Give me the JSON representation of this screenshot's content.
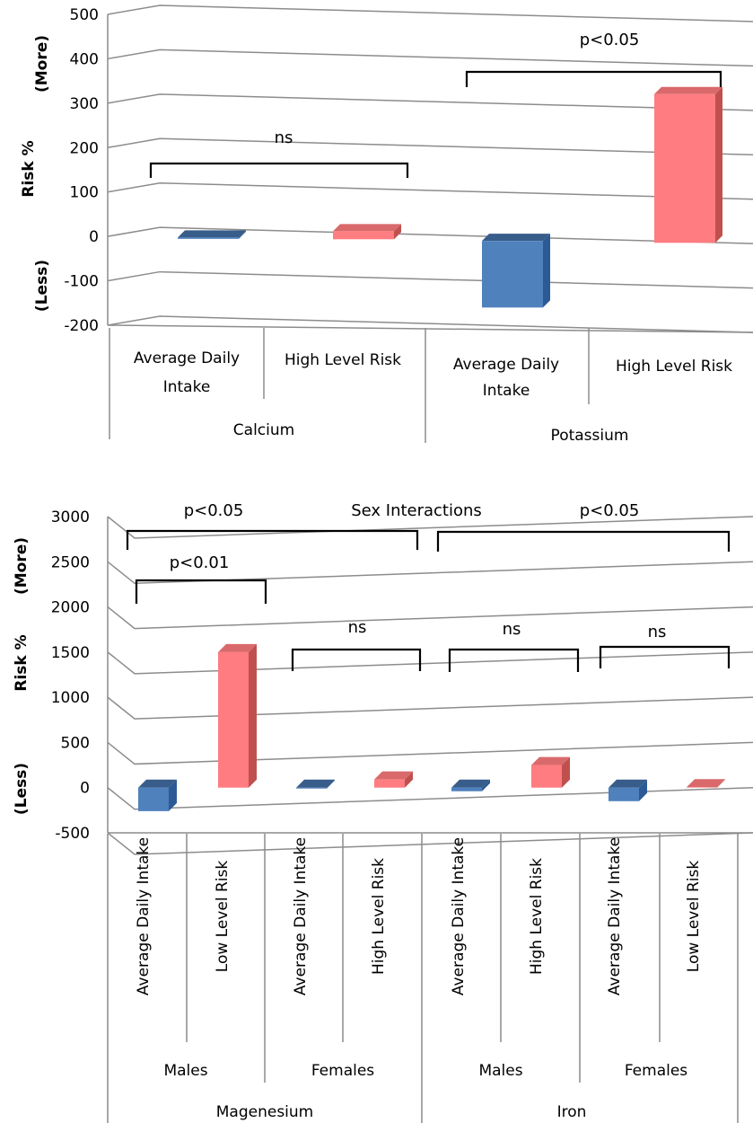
{
  "chart_data": [
    {
      "type": "bar",
      "y_axis": {
        "label": "Risk %",
        "more_label": "(More)",
        "less_label": "(Less)",
        "ylim": [
          -200,
          500
        ],
        "ticks": [
          "500",
          "400",
          "300",
          "200",
          "100",
          "0",
          "-100",
          "-200"
        ]
      },
      "groups": [
        "Calcium",
        "Potassium"
      ],
      "categories": [
        "Average Daily Intake",
        "High Level Risk",
        "Average Daily Intake",
        "High Level Risk"
      ],
      "category_group": [
        0,
        0,
        1,
        1
      ],
      "values": [
        -3,
        18,
        -150,
        335
      ],
      "colors": [
        "blue",
        "red",
        "blue",
        "red"
      ],
      "annotations": [
        {
          "text": "ns",
          "span": [
            0,
            1
          ]
        },
        {
          "text": "p<0.05",
          "span": [
            2,
            3
          ]
        }
      ]
    },
    {
      "type": "bar",
      "y_axis": {
        "label": "Risk %",
        "more_label": "(More)",
        "less_label": "(Less)",
        "ylim": [
          -500,
          3000
        ],
        "ticks": [
          "3000",
          "2500",
          "2000",
          "1500",
          "1000",
          "500",
          "0",
          "-500"
        ]
      },
      "groups": [
        "Magenesium",
        "Iron"
      ],
      "subgroups": [
        "Males",
        "Females",
        "Males",
        "Females"
      ],
      "categories": [
        "Average Daily Intake",
        "Low Level Risk",
        "Average Daily Intake",
        "High Level Risk",
        "Average Daily Intake",
        "High Level Risk",
        "Average Daily Intake",
        "Low Level Risk"
      ],
      "values": [
        -260,
        1500,
        -10,
        90,
        -40,
        250,
        -150,
        5
      ],
      "colors": [
        "blue",
        "red",
        "blue",
        "red",
        "blue",
        "red",
        "blue",
        "red"
      ],
      "annotations": [
        {
          "text": "Sex Interactions"
        },
        {
          "text": "p<0.05",
          "span": "Magenesium"
        },
        {
          "text": "p<0.05",
          "span": "Iron"
        },
        {
          "text": "p<0.01",
          "span": [
            0,
            1
          ]
        },
        {
          "text": "ns",
          "span": [
            2,
            3
          ]
        },
        {
          "text": "ns",
          "span": [
            4,
            5
          ]
        },
        {
          "text": "ns",
          "span": [
            6,
            7
          ]
        }
      ]
    }
  ],
  "colors": {
    "blue_front": "#4f81bd",
    "blue_side": "#2c5a94",
    "blue_top": "#385d8a",
    "red_front": "#ff7c80",
    "red_side": "#c0504d",
    "red_top": "#d9696b"
  }
}
